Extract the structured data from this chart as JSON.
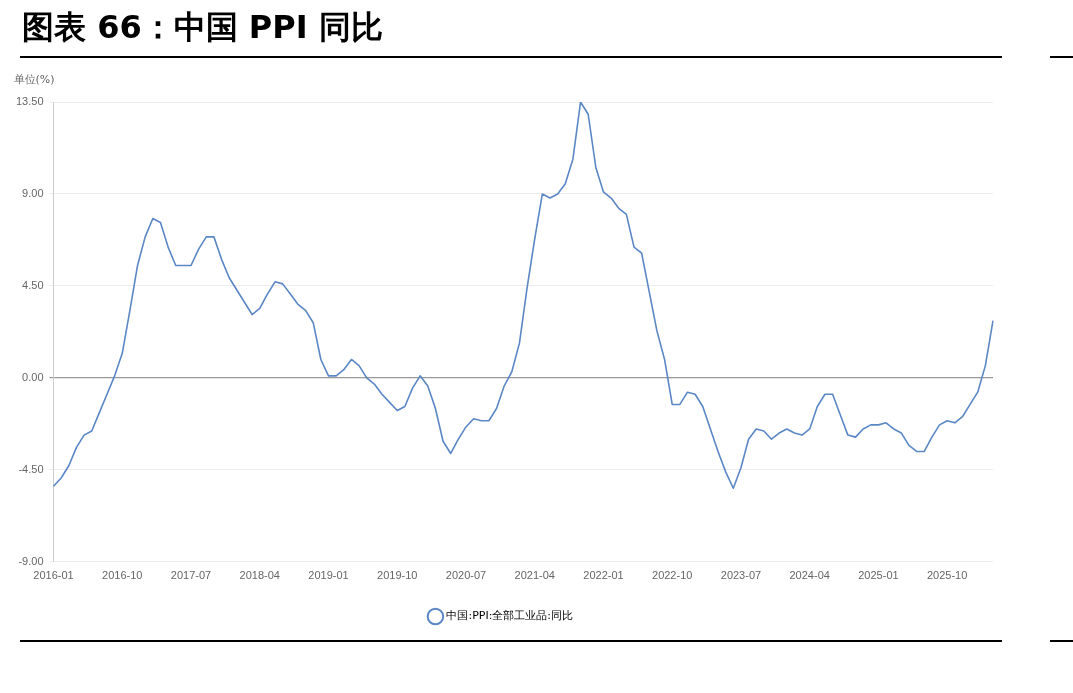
{
  "chart_data": {
    "type": "line",
    "title": "图表 66：中国 PPI 同比",
    "ylabel": "单位(%)",
    "categories": [
      "2016-01",
      null,
      null,
      null,
      null,
      null,
      null,
      null,
      null,
      "2016-10",
      null,
      null,
      null,
      null,
      null,
      null,
      null,
      null,
      "2017-07",
      null,
      null,
      null,
      null,
      null,
      null,
      null,
      null,
      "2018-04",
      null,
      null,
      null,
      null,
      null,
      null,
      null,
      null,
      "2019-01",
      null,
      null,
      null,
      null,
      null,
      null,
      null,
      null,
      "2019-10",
      null,
      null,
      null,
      null,
      null,
      null,
      null,
      null,
      "2020-07",
      null,
      null,
      null,
      null,
      null,
      null,
      null,
      null,
      "2021-04",
      null,
      null,
      null,
      null,
      null,
      null,
      null,
      null,
      "2022-01",
      null,
      null,
      null,
      null,
      null,
      null,
      null,
      null,
      "2022-10",
      null,
      null,
      null,
      null,
      null,
      null,
      null,
      null,
      "2023-07",
      null,
      null,
      null,
      null,
      null,
      null,
      null,
      null,
      "2024-04",
      null,
      null,
      null,
      null,
      null,
      null,
      null,
      null,
      "2025-01",
      null,
      null,
      null,
      null,
      null,
      null,
      null,
      null,
      "2025-10",
      null,
      null,
      null,
      null,
      null,
      null
    ],
    "series": [
      {
        "name": "中国:PPI:全部工业品:同比",
        "color": "#5b87c5",
        "values": [
          -5.3,
          -4.9,
          -4.3,
          -3.4,
          -2.8,
          -2.6,
          -1.7,
          -0.8,
          0.1,
          1.2,
          3.3,
          5.5,
          6.9,
          7.8,
          7.6,
          6.4,
          5.5,
          5.5,
          5.5,
          6.3,
          6.9,
          6.9,
          5.8,
          4.9,
          4.3,
          3.7,
          3.1,
          3.4,
          4.1,
          4.7,
          4.6,
          4.1,
          3.6,
          3.3,
          2.7,
          0.9,
          0.1,
          0.1,
          0.4,
          0.9,
          0.6,
          0.0,
          -0.3,
          -0.8,
          -1.2,
          -1.6,
          -1.4,
          -0.5,
          0.1,
          -0.4,
          -1.5,
          -3.1,
          -3.7,
          -3.0,
          -2.4,
          -2.0,
          -2.1,
          -2.1,
          -1.5,
          -0.4,
          0.3,
          1.7,
          4.4,
          6.8,
          9.0,
          8.8,
          9.0,
          9.5,
          10.7,
          13.5,
          12.9,
          10.3,
          9.1,
          8.8,
          8.3,
          8.0,
          6.4,
          6.1,
          4.2,
          2.3,
          0.9,
          -1.3,
          -1.3,
          -0.7,
          -0.8,
          -1.4,
          -2.5,
          -3.6,
          -4.6,
          -5.4,
          -4.4,
          -3.0,
          -2.5,
          -2.6,
          -3.0,
          -2.7,
          -2.5,
          -2.7,
          -2.8,
          -2.5,
          -1.4,
          -0.8,
          -0.8,
          -1.8,
          -2.8,
          -2.9,
          -2.5,
          -2.3,
          -2.3,
          -2.2,
          -2.5,
          -2.7,
          -3.3,
          -3.6,
          -3.6,
          -2.9,
          -2.3,
          -2.1,
          -2.2,
          -1.9,
          -1.3,
          -0.7,
          0.6,
          2.8
        ]
      }
    ],
    "ylim": [
      -9,
      13.5
    ],
    "yticks": [
      {
        "value": -9,
        "label": "-9.00"
      },
      {
        "value": -4.5,
        "label": "-4.50"
      },
      {
        "value": 0,
        "label": "0.00"
      },
      {
        "value": 4.5,
        "label": "4.50"
      },
      {
        "value": 9,
        "label": "9.00"
      },
      {
        "value": 13.5,
        "label": "13.50"
      }
    ],
    "grid": "y",
    "legend": "bottom",
    "marker": "none",
    "line_style": "solid"
  }
}
